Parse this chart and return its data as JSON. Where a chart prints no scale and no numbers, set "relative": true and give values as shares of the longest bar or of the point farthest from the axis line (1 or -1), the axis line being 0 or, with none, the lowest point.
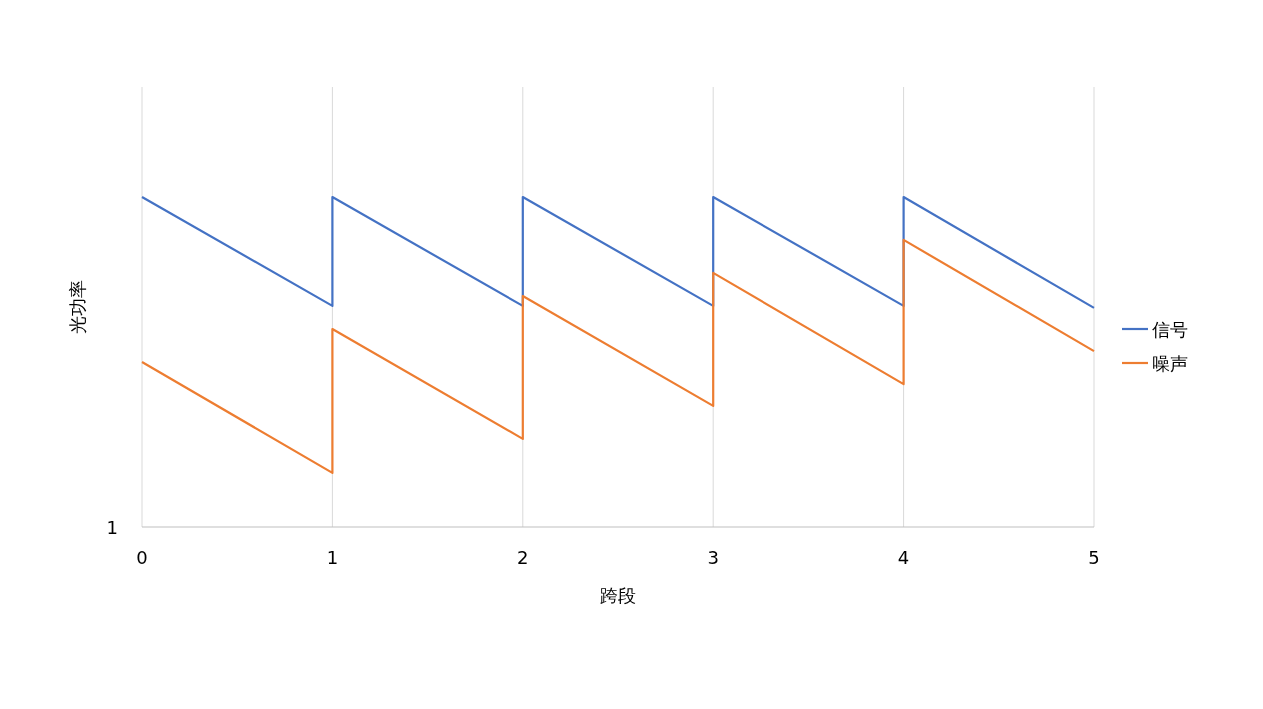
{
  "chart_data": {
    "type": "line",
    "xlabel": "跨段",
    "ylabel": "光功率",
    "relative": true,
    "xlim": [
      0,
      5
    ],
    "xticks": [
      0,
      1,
      2,
      3,
      4,
      5
    ],
    "grid": "x",
    "legend": "right",
    "annotations": [
      "1"
    ],
    "series": [
      {
        "name": "信号",
        "color": "#4472c4",
        "x": [
          0,
          1,
          1,
          2,
          2,
          3,
          3,
          4,
          4,
          5
        ],
        "values": [
          1.0,
          0.67,
          1.0,
          0.67,
          1.0,
          0.67,
          1.0,
          0.67,
          1.0,
          0.664
        ]
      },
      {
        "name": "噪声",
        "color": "#ed7d31",
        "x": [
          0,
          1,
          1,
          2,
          2,
          3,
          3,
          4,
          4,
          5
        ],
        "values": [
          0.5,
          0.164,
          0.6,
          0.267,
          0.7,
          0.367,
          0.77,
          0.433,
          0.87,
          0.533
        ]
      }
    ]
  }
}
